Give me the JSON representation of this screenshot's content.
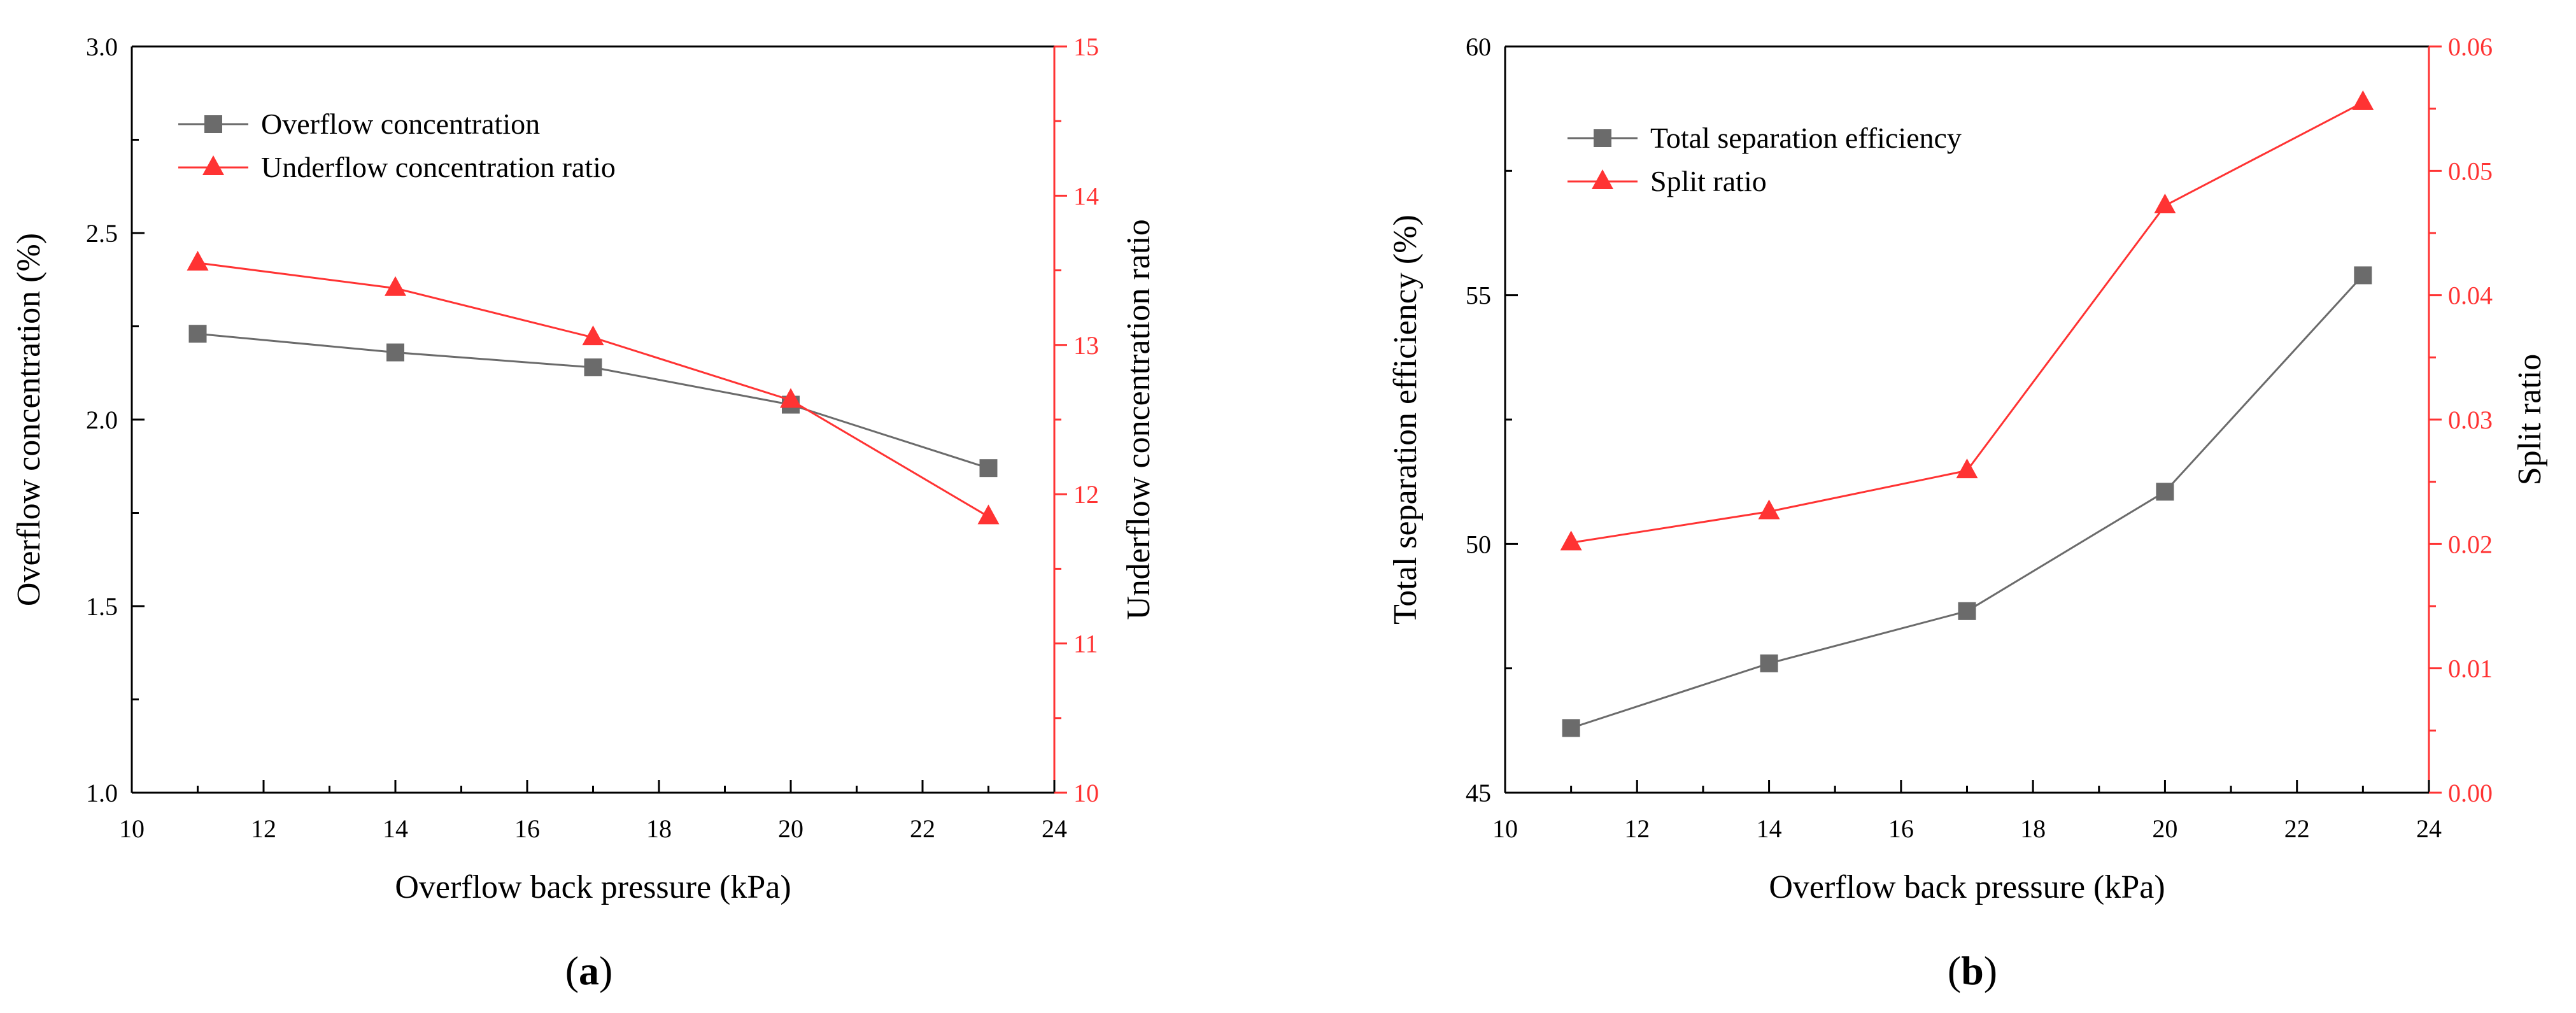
{
  "chart_data": [
    {
      "type": "line",
      "panel_label": "(a)",
      "panel_letter": "a",
      "xlabel": "Overflow back pressure (kPa)",
      "ylabel_left": "Overflow concentration (%)",
      "ylabel_right": "Underflow concentration ratio",
      "xlim": [
        10,
        24
      ],
      "ylim_left": [
        1.0,
        3.0
      ],
      "ylim_right": [
        10,
        15
      ],
      "xticks": [
        "10",
        "12",
        "14",
        "16",
        "18",
        "20",
        "22",
        "24"
      ],
      "yticks_left": [
        "1.0",
        "1.5",
        "2.0",
        "2.5",
        "3.0"
      ],
      "yticks_right": [
        "10",
        "11",
        "12",
        "13",
        "14",
        "15"
      ],
      "legend_position": "top-left",
      "grid": false,
      "x": [
        11,
        14,
        17,
        20,
        23
      ],
      "series": [
        {
          "name": "Overflow concentration",
          "axis": "left",
          "marker": "square",
          "color": "#6b6b6b",
          "values": [
            2.23,
            2.18,
            2.14,
            2.04,
            1.87
          ]
        },
        {
          "name": "Underflow concentration ratio",
          "axis": "right",
          "marker": "triangle",
          "color": "#ff3333",
          "values": [
            13.55,
            13.38,
            13.05,
            12.63,
            11.85
          ]
        }
      ]
    },
    {
      "type": "line",
      "panel_label": "(b)",
      "panel_letter": "b",
      "xlabel": "Overflow back pressure (kPa)",
      "ylabel_left": "Total separation efficiency (%)",
      "ylabel_right": "Split ratio",
      "xlim": [
        10,
        24
      ],
      "ylim_left": [
        45,
        60
      ],
      "ylim_right": [
        0.0,
        0.06
      ],
      "xticks": [
        "10",
        "12",
        "14",
        "16",
        "18",
        "20",
        "22",
        "24"
      ],
      "yticks_left": [
        "45",
        "50",
        "55",
        "60"
      ],
      "yticks_right": [
        "0.00",
        "0.01",
        "0.02",
        "0.03",
        "0.04",
        "0.05",
        "0.06"
      ],
      "legend_position": "top-left",
      "grid": false,
      "x": [
        11,
        14,
        17,
        20,
        23
      ],
      "series": [
        {
          "name": "Total separation efficiency",
          "axis": "left",
          "marker": "square",
          "color": "#6b6b6b",
          "values": [
            46.3,
            47.6,
            48.65,
            51.05,
            55.4
          ]
        },
        {
          "name": "Split ratio",
          "axis": "right",
          "marker": "triangle",
          "color": "#ff3333",
          "values": [
            0.0201,
            0.0226,
            0.0259,
            0.0472,
            0.0555
          ]
        }
      ]
    }
  ]
}
